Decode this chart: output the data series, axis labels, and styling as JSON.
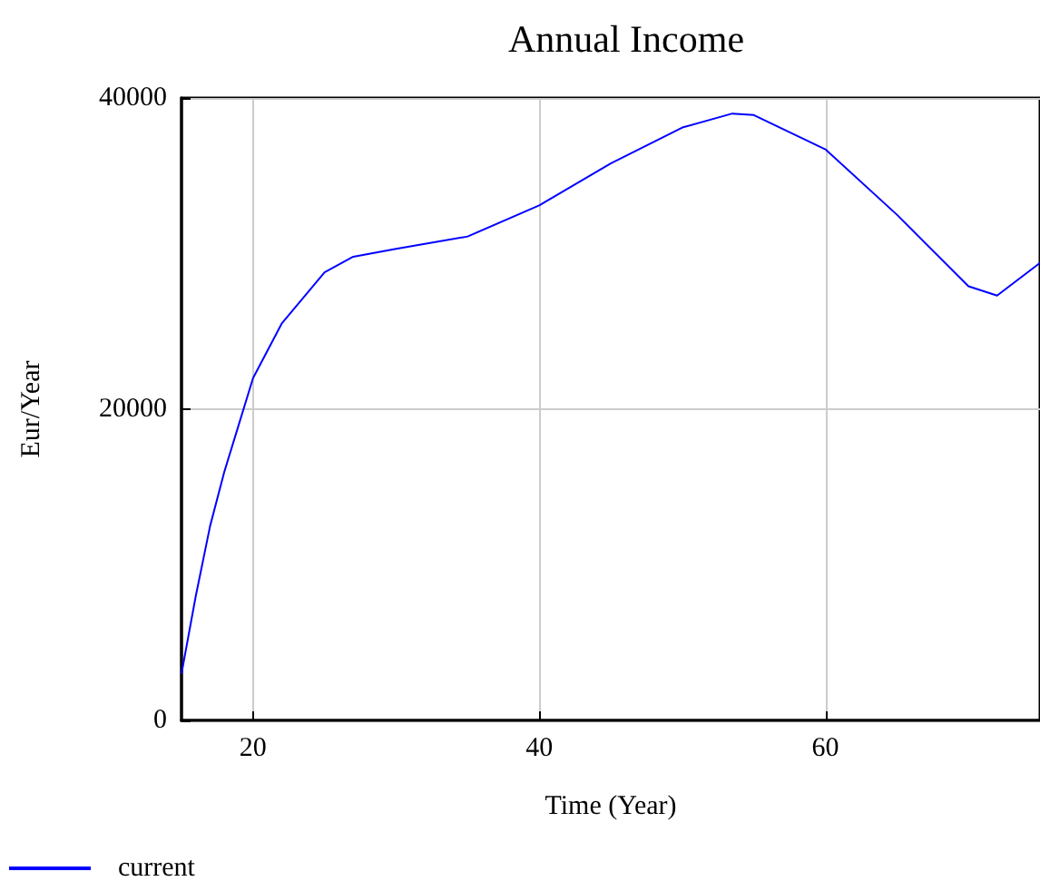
{
  "chart_data": {
    "type": "line",
    "title": "Annual Income",
    "xlabel": "Time (Year)",
    "ylabel": "Eur/Year",
    "series": [
      {
        "name": "current",
        "color": "#0000ff",
        "x": [
          15,
          16,
          17,
          18,
          19,
          20,
          22,
          25,
          27,
          30,
          35,
          40,
          45,
          50,
          53.5,
          55,
          60,
          65,
          70,
          72,
          75
        ],
        "values": [
          3000,
          8000,
          12500,
          16000,
          19000,
          22000,
          25500,
          28800,
          29800,
          30300,
          31100,
          33100,
          35800,
          38100,
          39000,
          38900,
          36700,
          32500,
          27900,
          27300,
          29400
        ]
      }
    ],
    "xlim": [
      15,
      75
    ],
    "xticks": [
      20,
      40,
      60
    ],
    "ylim": [
      0,
      40000
    ],
    "yticks": [
      0,
      20000,
      40000
    ],
    "grid": true,
    "legend": "bottom left",
    "marker": "none",
    "line_style": "solid"
  }
}
